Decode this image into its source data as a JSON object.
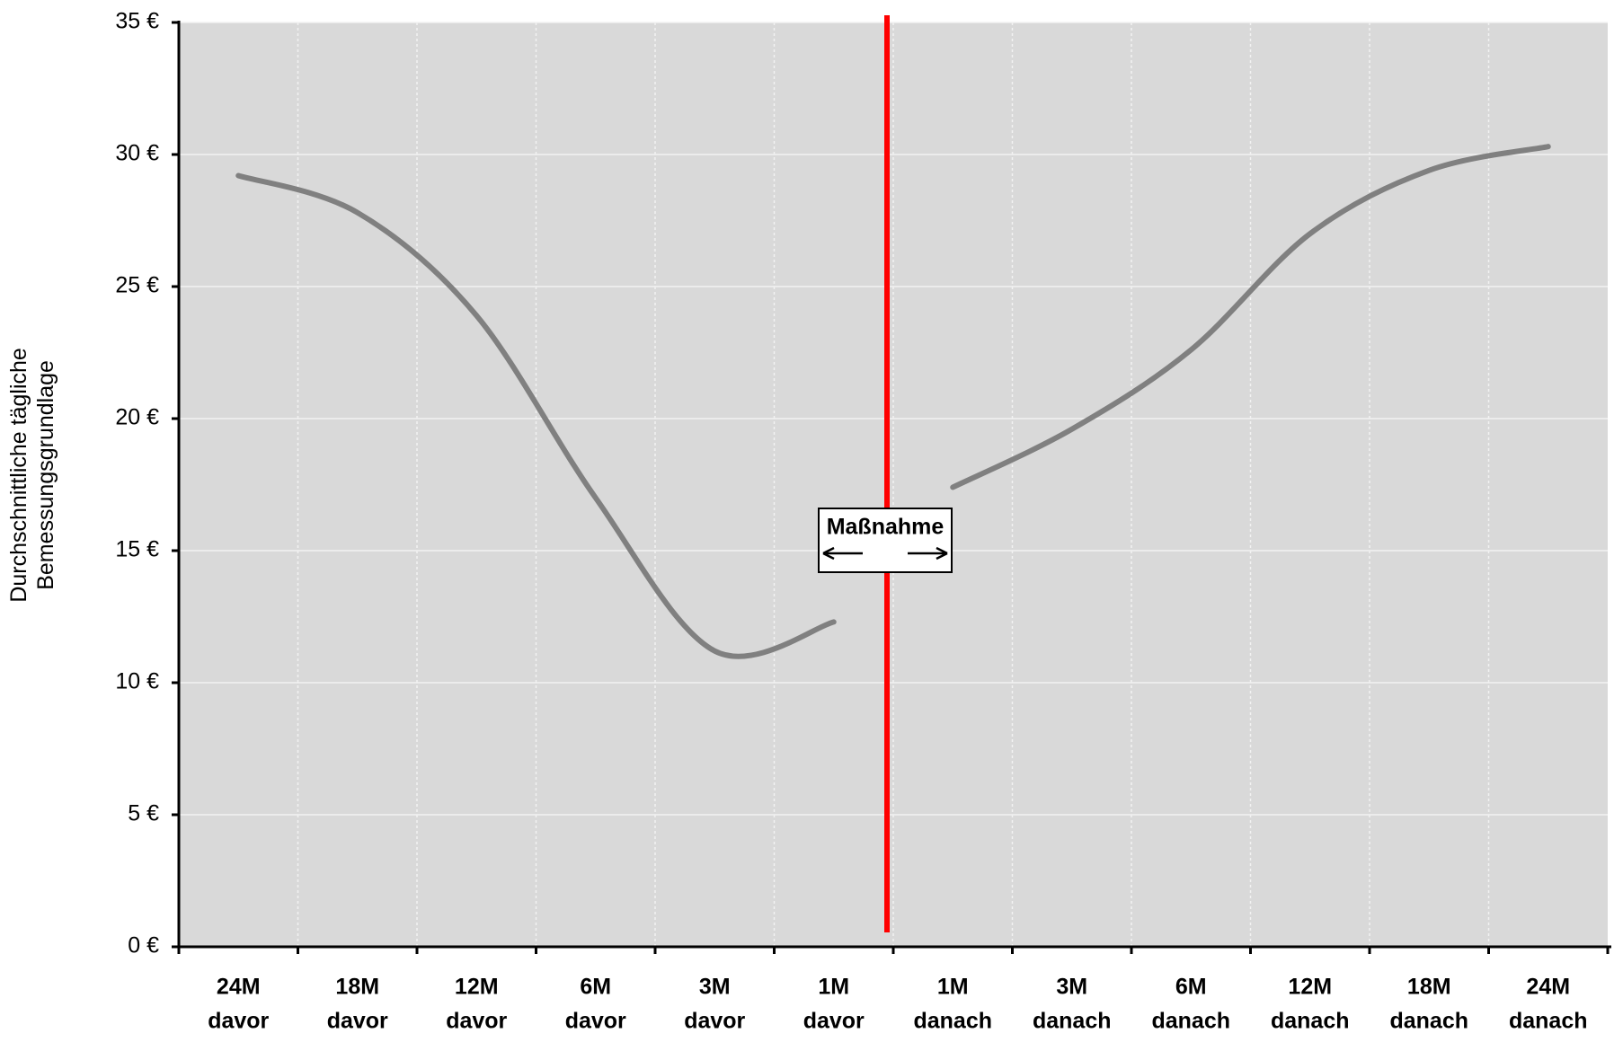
{
  "chart_data": {
    "type": "line",
    "y_label": [
      "Durchschnittliche tägliche",
      "Bemessungsgrundlage"
    ],
    "annotation": "Maßnahme",
    "categories": [
      [
        "24M",
        "davor"
      ],
      [
        "18M",
        "davor"
      ],
      [
        "12M",
        "davor"
      ],
      [
        "6M",
        "davor"
      ],
      [
        "3M",
        "davor"
      ],
      [
        "1M",
        "davor"
      ],
      [
        "1M",
        "danach"
      ],
      [
        "3M",
        "danach"
      ],
      [
        "6M",
        "danach"
      ],
      [
        "12M",
        "danach"
      ],
      [
        "18M",
        "danach"
      ],
      [
        "24M",
        "danach"
      ]
    ],
    "series": [
      {
        "color": "#808080",
        "values": [
          29.2,
          27.8,
          23.9,
          17.0,
          11.2,
          12.3,
          null,
          null,
          null,
          null,
          null,
          null
        ]
      },
      {
        "color": "#808080",
        "values": [
          null,
          null,
          null,
          null,
          null,
          null,
          17.4,
          19.6,
          22.6,
          27.0,
          29.4,
          30.3
        ]
      }
    ],
    "marker_color": "#ff0000",
    "ylim": [
      0,
      35
    ],
    "yticks": [
      {
        "value": 0,
        "label": "0 €"
      },
      {
        "value": 5,
        "label": "5 €"
      },
      {
        "value": 10,
        "label": "10 €"
      },
      {
        "value": 15,
        "label": "15 €"
      },
      {
        "value": 20,
        "label": "20 €"
      },
      {
        "value": 25,
        "label": "25 €"
      },
      {
        "value": 30,
        "label": "30 €"
      },
      {
        "value": 35,
        "label": "35 €"
      }
    ],
    "grid": true
  }
}
